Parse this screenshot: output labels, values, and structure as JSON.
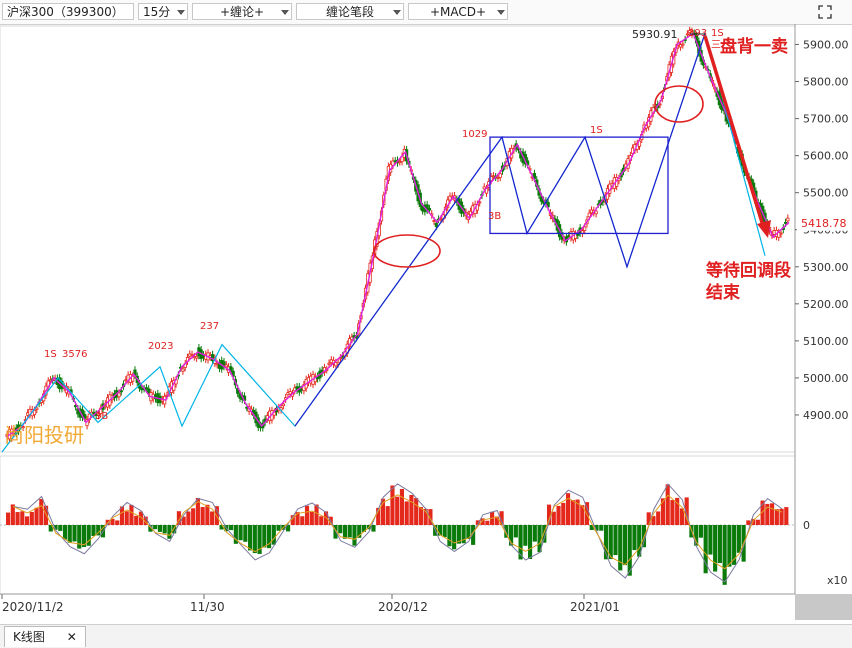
{
  "toolbar": {
    "symbol": "沪深300（399300）",
    "period": "15分",
    "indicator1": "+缠论+",
    "indicator2": "缠论笔段",
    "indicator3": "+MACD+"
  },
  "statusbar": {
    "tab_label": "K线图",
    "tab_close": "✕"
  },
  "colors": {
    "up": "#e4281c",
    "down": "#0a7a0a",
    "pen": "#00b4e6",
    "segment": "#2020d0",
    "magenta": "#e020e0",
    "annotation": "#e02020",
    "watermark": "#f0a020"
  },
  "chart_data": [
    {
      "type": "line",
      "title": "",
      "price_axis": {
        "ticks": [
          "5900.00",
          "5800.00",
          "5700.00",
          "5600.00",
          "5500.00",
          "5400.00",
          "5300.00",
          "5200.00",
          "5100.00",
          "5000.00",
          "4900.00"
        ],
        "range": [
          4800,
          5950
        ]
      },
      "time_axis": {
        "labels": [
          "2020/11/2",
          "11/30",
          "2020/12",
          "2021/01"
        ]
      },
      "last_price": "5418.78",
      "peak_label": "5930.91",
      "watermark": "尚阳投研",
      "pen_labels": [
        "1S",
        "3576",
        "3B",
        "2023",
        "237",
        "1029",
        "3B",
        "1S",
        "393",
        "1S",
        "三"
      ],
      "series": [
        {
          "name": "",
          "values": [
            4840,
            4870,
            4930,
            5000,
            4960,
            4880,
            4920,
            4960,
            5010,
            4950,
            4940,
            5030,
            5070,
            5050,
            5020,
            4930,
            4870,
            4920,
            4960,
            4990,
            5020,
            5060,
            5120,
            5330,
            5560,
            5610,
            5470,
            5420,
            5490,
            5430,
            5510,
            5560,
            5630,
            5540,
            5450,
            5370,
            5400,
            5460,
            5520,
            5580,
            5680,
            5750,
            5900,
            5930,
            5820,
            5720,
            5600,
            5480,
            5380,
            5420
          ]
        }
      ],
      "bi_points": [
        4800,
        5000,
        4880,
        5030,
        4870,
        5090,
        4870,
        5650,
        5390,
        5650,
        5300,
        5930,
        5330
      ],
      "annotations": [
        "盘背一卖",
        "等待回调段",
        "结束"
      ]
    },
    {
      "type": "bar",
      "title": "",
      "zero_label": "0",
      "scale_label": "x10",
      "series": [
        {
          "name": "",
          "values": [
            3,
            2,
            4,
            -1,
            -3,
            -4,
            -2,
            1,
            3,
            2,
            -1,
            -2,
            2,
            4,
            3,
            -1,
            -3,
            -5,
            -4,
            -1,
            2,
            3,
            2,
            -2,
            -3,
            -1,
            4,
            6,
            5,
            3,
            -2,
            -4,
            -3,
            1,
            2,
            -3,
            -5,
            -4,
            3,
            5,
            4,
            -1,
            -6,
            -8,
            -5,
            2,
            6,
            4,
            -3,
            -7,
            -9,
            -6,
            1,
            4,
            3
          ]
        }
      ]
    }
  ]
}
